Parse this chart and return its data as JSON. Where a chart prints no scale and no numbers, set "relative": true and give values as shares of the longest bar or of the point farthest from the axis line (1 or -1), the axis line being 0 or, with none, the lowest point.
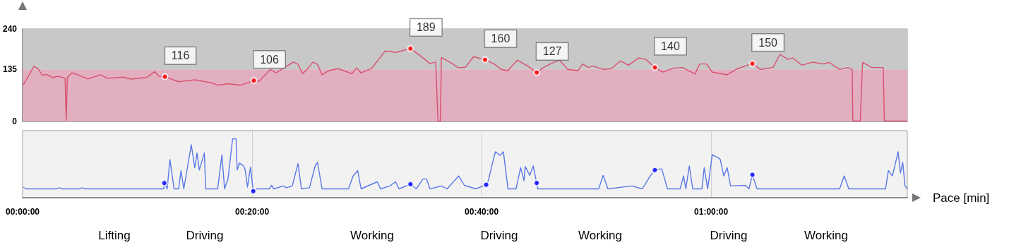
{
  "chart_data": [
    {
      "type": "line",
      "xlim": [
        0,
        77.1
      ],
      "xticks": [
        0,
        20,
        40,
        60
      ],
      "ylim": [
        0,
        240
      ],
      "yticks": [
        0,
        135,
        240
      ],
      "tick_labels": "y",
      "grid": "x",
      "bands": [
        {
          "axis": "y",
          "from": 0,
          "to": 135,
          "color": "#e1afc0"
        },
        {
          "axis": "y",
          "from": 135,
          "to": 240,
          "color": "#c8c8c8"
        }
      ],
      "series": [
        {
          "type": "line",
          "color": "#d9506e",
          "x": [
            0.06,
            1.0,
            1.4,
            1.7,
            2.1,
            2.6,
            3.1,
            3.7,
            3.8,
            3.9,
            4.3,
            4.8,
            5.7,
            6.8,
            7.4,
            8.8,
            9.4,
            10.8,
            11.5,
            11.9,
            12.4,
            13.6,
            15.0,
            16.5,
            17.0,
            17.9,
            19.0,
            20.15,
            20.6,
            21.6,
            22.1,
            23.0,
            23.6,
            24.0,
            24.4,
            24.8,
            25.3,
            25.7,
            26.1,
            26.7,
            27.5,
            28.7,
            29.1,
            29.5,
            30.4,
            31.6,
            32.1,
            32.5,
            33.8,
            34.6,
            35.5,
            36.0,
            36.2,
            36.4,
            36.5,
            37.4,
            38.0,
            38.6,
            39.3,
            40.3,
            41.1,
            41.7,
            42.3,
            43.1,
            44.0,
            44.8,
            45.4,
            46.1,
            46.8,
            47.5,
            48.4,
            48.8,
            49.3,
            49.7,
            50.6,
            51.3,
            52.1,
            52.8,
            53.7,
            54.3,
            55.1,
            55.8,
            56.7,
            57.5,
            58.6,
            59.0,
            59.6,
            60.1,
            61.4,
            62.3,
            63.6,
            64.3,
            65.4,
            66.0,
            66.7,
            67.1,
            67.9,
            68.9,
            69.7,
            70.3,
            71.2,
            71.9,
            72.3,
            72.35,
            73.0,
            73.2,
            74.0,
            74.7,
            75.0,
            75.1,
            77.1
          ],
          "values": [
            95,
            143,
            135,
            120,
            122,
            114,
            117,
            112,
            3,
            114,
            126,
            121,
            110,
            121,
            112,
            115,
            110,
            114,
            129,
            117,
            116,
            103,
            108,
            100,
            94,
            98,
            94,
            106,
            104,
            135,
            126,
            143,
            154,
            148,
            124,
            135,
            154,
            148,
            121,
            132,
            137,
            124,
            139,
            126,
            137,
            183,
            181,
            179,
            189,
            172,
            150,
            154,
            0,
            0,
            166,
            151,
            139,
            141,
            168,
            160,
            149,
            135,
            132,
            159,
            144,
            127,
            140,
            151,
            159,
            135,
            132,
            149,
            140,
            144,
            135,
            137,
            157,
            146,
            165,
            161,
            140,
            128,
            138,
            140,
            123,
            149,
            149,
            128,
            121,
            137,
            150,
            135,
            140,
            174,
            161,
            165,
            146,
            154,
            149,
            153,
            135,
            140,
            135,
            1,
            1,
            153,
            140,
            140,
            140,
            1,
            1
          ]
        },
        {
          "type": "scatter",
          "color": "#ff0000",
          "marker": "circle",
          "x": [
            12.4,
            20.15,
            33.8,
            40.3,
            44.8,
            55.1,
            63.6
          ],
          "values": [
            116,
            106,
            189,
            160,
            127,
            140,
            150
          ],
          "value_labels": [
            "116",
            "106",
            "189",
            "160",
            "127",
            "140",
            "150"
          ]
        }
      ]
    },
    {
      "type": "line",
      "relative": true,
      "xlim": [
        0,
        77.1
      ],
      "xticks": [
        {
          "value": 0,
          "label": "00:00:00"
        },
        {
          "value": 20,
          "label": "00:20:00"
        },
        {
          "value": 40,
          "label": "00:40:00"
        },
        {
          "value": 60,
          "label": "01:00:00"
        }
      ],
      "tick_labels": "x",
      "grid": "x",
      "xlabel": "Pace [min]",
      "annotations": [
        "Lifting",
        "Driving",
        "Working",
        "Driving",
        "Working",
        "Driving",
        "Working"
      ],
      "series": [
        {
          "type": "line",
          "color": "#5a78e6",
          "x": [
            0.05,
            0.3,
            3.0,
            3.2,
            3.4,
            5.0,
            5.2,
            5.4,
            12.3,
            12.35,
            12.6,
            12.84,
            13.2,
            13.6,
            13.8,
            14.05,
            14.7,
            15.0,
            15.2,
            15.4,
            15.84,
            15.96,
            17.0,
            17.37,
            17.6,
            17.9,
            18.3,
            18.6,
            18.7,
            18.9,
            19.25,
            19.4,
            19.6,
            19.86,
            20.1,
            20.4,
            21.5,
            21.7,
            21.9,
            22.7,
            23.0,
            23.5,
            24.0,
            24.3,
            25.0,
            25.5,
            25.7,
            26.1,
            28.4,
            28.8,
            29.2,
            29.5,
            30.9,
            31.2,
            32.0,
            32.5,
            32.8,
            33.8,
            34.3,
            34.9,
            35.2,
            35.5,
            36.5,
            37.0,
            38.0,
            38.5,
            39.5,
            40.0,
            40.4,
            40.6,
            40.9,
            41.2,
            41.6,
            41.9,
            42.3,
            43.0,
            43.4,
            43.7,
            43.8,
            44.2,
            44.5,
            44.8,
            44.9,
            50.2,
            50.6,
            51.0,
            53.1,
            54.0,
            54.7,
            55.1,
            55.7,
            56.2,
            57.3,
            57.6,
            57.8,
            58.1,
            58.4,
            59.2,
            59.4,
            59.7,
            60.1,
            60.6,
            60.8,
            61.1,
            61.4,
            61.7,
            63.0,
            63.3,
            63.6,
            64.0,
            71.2,
            71.6,
            72.0,
            75.2,
            75.45,
            75.8,
            76.3,
            76.5,
            76.7,
            76.9,
            77.1
          ],
          "values": [
            0.18,
            0.15,
            0.15,
            0.17,
            0.15,
            0.15,
            0.17,
            0.15,
            0.15,
            0.25,
            0.15,
            0.65,
            0.15,
            0.15,
            0.46,
            0.15,
            0.9,
            0.51,
            0.76,
            0.47,
            0.76,
            0.15,
            0.15,
            0.73,
            0.15,
            0.32,
            1.0,
            1.0,
            0.47,
            0.59,
            0.54,
            0.47,
            0.18,
            0.52,
            0.11,
            0.15,
            0.15,
            0.21,
            0.15,
            0.2,
            0.17,
            0.2,
            0.58,
            0.15,
            0.17,
            0.54,
            0.6,
            0.15,
            0.15,
            0.37,
            0.46,
            0.15,
            0.27,
            0.15,
            0.2,
            0.27,
            0.15,
            0.23,
            0.15,
            0.32,
            0.32,
            0.15,
            0.2,
            0.15,
            0.37,
            0.21,
            0.15,
            0.19,
            0.22,
            0.3,
            0.55,
            0.78,
            0.72,
            0.78,
            0.15,
            0.15,
            0.51,
            0.29,
            0.53,
            0.38,
            0.54,
            0.25,
            0.15,
            0.15,
            0.38,
            0.15,
            0.2,
            0.15,
            0.37,
            0.47,
            0.49,
            0.15,
            0.15,
            0.37,
            0.15,
            0.54,
            0.15,
            0.15,
            0.51,
            0.15,
            0.73,
            0.68,
            0.65,
            0.37,
            0.51,
            0.2,
            0.21,
            0.15,
            0.39,
            0.15,
            0.15,
            0.37,
            0.15,
            0.15,
            0.46,
            0.37,
            0.78,
            0.42,
            0.6,
            0.2,
            0.15
          ]
        },
        {
          "type": "scatter",
          "color": "#0000ff",
          "marker": "circle",
          "x": [
            12.35,
            20.1,
            33.8,
            40.4,
            44.8,
            55.1,
            63.6
          ],
          "values": [
            0.25,
            0.11,
            0.23,
            0.22,
            0.25,
            0.47,
            0.39
          ]
        }
      ]
    }
  ]
}
